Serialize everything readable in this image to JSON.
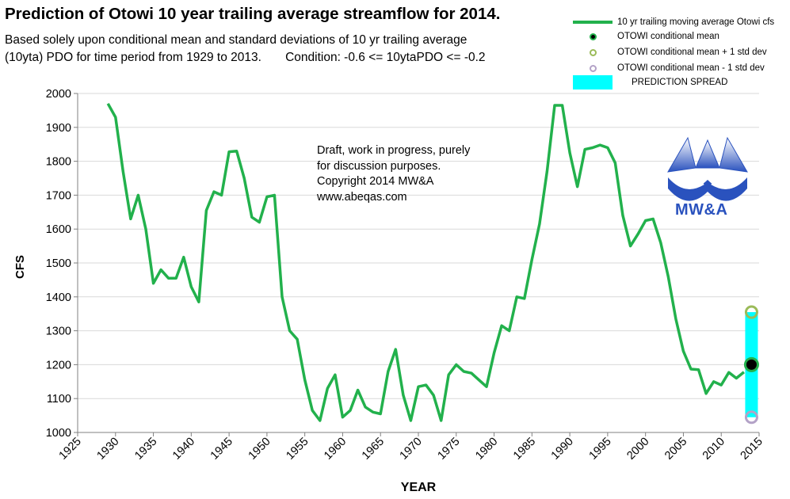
{
  "title": "Prediction of Otowi 10 year trailing average streamflow for 2014.",
  "subtitle": "Based solely upon conditional mean and standard deviations of 10 yr trailing average\n(10yta) PDO for time period from 1929 to 2013.       Condition: -0.6 <= 10ytaPDO <= -0.2",
  "annotation": "Draft, work in progress, purely\nfor discussion purposes.\nCopyright 2014 MW&A\nwww.abeqas.com",
  "logo_text": "MW&A",
  "legend": {
    "series_line": "10 yr trailing moving average Otowi cfs",
    "mean": "OTOWI conditional mean",
    "plus": "OTOWI conditional mean + 1 std dev",
    "minus": "OTOWI conditional mean  - 1 std dev",
    "spread": "PREDICTION SPREAD"
  },
  "colors": {
    "series": "#22b14c",
    "mean_fill": "#000000",
    "mean_edge": "#22b14c",
    "plus_edge": "#9bbb59",
    "minus_edge": "#b3a2c7",
    "spread": "#00ffff"
  },
  "chart_data": {
    "type": "line",
    "xlabel": "YEAR",
    "ylabel": "CFS",
    "xlim": [
      1925,
      2015
    ],
    "ylim": [
      1000,
      2000
    ],
    "x_ticks": [
      "1925",
      "1930",
      "1935",
      "1940",
      "1945",
      "1950",
      "1955",
      "1960",
      "1965",
      "1970",
      "1975",
      "1980",
      "1985",
      "1990",
      "1995",
      "2000",
      "2005",
      "2010",
      "2015"
    ],
    "y_ticks": [
      "1000",
      "1100",
      "1200",
      "1300",
      "1400",
      "1500",
      "1600",
      "1700",
      "1800",
      "1900",
      "2000"
    ],
    "grid": "horizontal",
    "legend_position": "top-right",
    "series": [
      {
        "name": "10 yr trailing moving average Otowi cfs",
        "x": [
          1929,
          1930,
          1931,
          1932,
          1933,
          1934,
          1935,
          1936,
          1937,
          1938,
          1939,
          1940,
          1941,
          1942,
          1943,
          1944,
          1945,
          1946,
          1947,
          1948,
          1949,
          1950,
          1951,
          1952,
          1953,
          1954,
          1955,
          1956,
          1957,
          1958,
          1959,
          1960,
          1961,
          1962,
          1963,
          1964,
          1965,
          1966,
          1967,
          1968,
          1969,
          1970,
          1971,
          1972,
          1973,
          1974,
          1975,
          1976,
          1977,
          1978,
          1979,
          1980,
          1981,
          1982,
          1983,
          1984,
          1985,
          1986,
          1987,
          1988,
          1989,
          1990,
          1991,
          1992,
          1993,
          1994,
          1995,
          1996,
          1997,
          1998,
          1999,
          2000,
          2001,
          2002,
          2003,
          2004,
          2005,
          2006,
          2007,
          2008,
          2009,
          2010,
          2011,
          2012,
          2013
        ],
        "values": [
          1970,
          1930,
          1770,
          1630,
          1700,
          1600,
          1440,
          1480,
          1455,
          1455,
          1517,
          1430,
          1385,
          1655,
          1710,
          1700,
          1828,
          1830,
          1750,
          1635,
          1620,
          1695,
          1700,
          1400,
          1300,
          1275,
          1155,
          1065,
          1035,
          1130,
          1170,
          1045,
          1065,
          1125,
          1075,
          1060,
          1055,
          1180,
          1245,
          1110,
          1035,
          1135,
          1140,
          1110,
          1035,
          1170,
          1200,
          1180,
          1175,
          1155,
          1135,
          1235,
          1315,
          1300,
          1400,
          1395,
          1510,
          1615,
          1770,
          1965,
          1965,
          1825,
          1725,
          1835,
          1840,
          1848,
          1840,
          1795,
          1640,
          1550,
          1585,
          1625,
          1630,
          1560,
          1460,
          1335,
          1240,
          1187,
          1185,
          1115,
          1150,
          1140,
          1177,
          1160,
          1178
        ]
      }
    ],
    "prediction": {
      "year": 2014,
      "mean": 1200,
      "plus_1_std": 1355,
      "minus_1_std": 1045
    }
  }
}
